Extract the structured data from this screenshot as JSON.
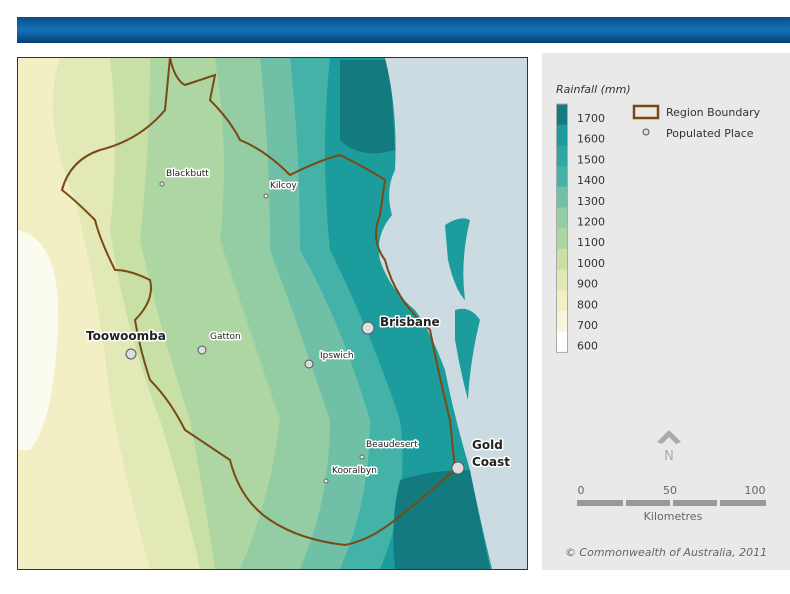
{
  "places": [
    "Blackbutt",
    "Kilcoy",
    "Toowoomba",
    "Gatton",
    "Brisbane",
    "Ipswich",
    "Beaudesert",
    "Kooralbyn",
    "Gold",
    "Coast"
  ],
  "legend": {
    "title": "Rainfall (mm)",
    "classes": [
      {
        "label": "1700",
        "color": "#137b80"
      },
      {
        "label": "1600",
        "color": "#1d9c9d"
      },
      {
        "label": "1500",
        "color": "#2ea7a4"
      },
      {
        "label": "1400",
        "color": "#45b2a8"
      },
      {
        "label": "1300",
        "color": "#70c0a8"
      },
      {
        "label": "1200",
        "color": "#94cca4"
      },
      {
        "label": "1100",
        "color": "#aed6a2"
      },
      {
        "label": "1000",
        "color": "#c8e0a6"
      },
      {
        "label": "900",
        "color": "#e2e9b6"
      },
      {
        "label": "800",
        "color": "#f2efc4"
      },
      {
        "label": "700",
        "color": "#f7f5dc"
      },
      {
        "label": "600",
        "color": "#ffffff"
      }
    ],
    "entries": [
      "Region Boundary",
      "Populated Place"
    ]
  },
  "north": "N",
  "scale": {
    "labels": [
      "0",
      "50",
      "100"
    ],
    "unit": "Kilometres"
  },
  "copyright": "© Commonwealth of Australia, 2011"
}
